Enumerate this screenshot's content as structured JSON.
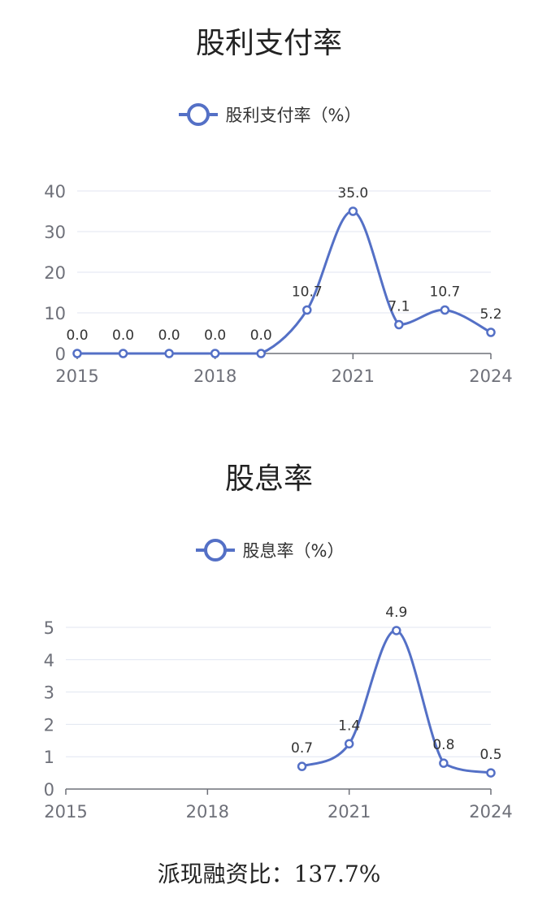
{
  "color_series": "#5470c6",
  "chart_data": [
    {
      "type": "line",
      "title": "股利支付率",
      "x": [
        2015,
        2016,
        2017,
        2018,
        2019,
        2020,
        2021,
        2022,
        2023,
        2024
      ],
      "x_tick_labels": [
        "2015",
        "2018",
        "2021",
        "2024"
      ],
      "y_tick_labels": [
        "0",
        "10",
        "20",
        "30",
        "40"
      ],
      "ylim": [
        0,
        40
      ],
      "xlim": [
        2015,
        2024
      ],
      "grid": true,
      "legend_position": "top-center",
      "series": [
        {
          "name": "股利支付率（%）",
          "values": [
            0.0,
            0.0,
            0.0,
            0.0,
            0.0,
            10.7,
            35.0,
            7.1,
            10.7,
            5.2
          ],
          "labels": [
            "0.0",
            "0.0",
            "0.0",
            "0.0",
            "0.0",
            "10.7",
            "35.0",
            "7.1",
            "10.7",
            "5.2"
          ]
        }
      ]
    },
    {
      "type": "line",
      "title": "股息率",
      "x": [
        2015,
        2016,
        2017,
        2018,
        2019,
        2020,
        2021,
        2022,
        2023,
        2024
      ],
      "x_tick_labels": [
        "2015",
        "2018",
        "2021",
        "2024"
      ],
      "y_tick_labels": [
        "0",
        "1",
        "2",
        "3",
        "4",
        "5"
      ],
      "ylim": [
        0,
        5
      ],
      "xlim": [
        2015,
        2024
      ],
      "grid": true,
      "legend_position": "top-center",
      "series": [
        {
          "name": "股息率（%）",
          "values": [
            null,
            null,
            null,
            null,
            null,
            0.7,
            1.4,
            4.9,
            0.8,
            0.5
          ],
          "labels": [
            "",
            "",
            "",
            "",
            "",
            "0.7",
            "1.4",
            "4.9",
            "0.8",
            "0.5"
          ]
        }
      ]
    }
  ],
  "footer_text": "派现融资比：137.7%"
}
